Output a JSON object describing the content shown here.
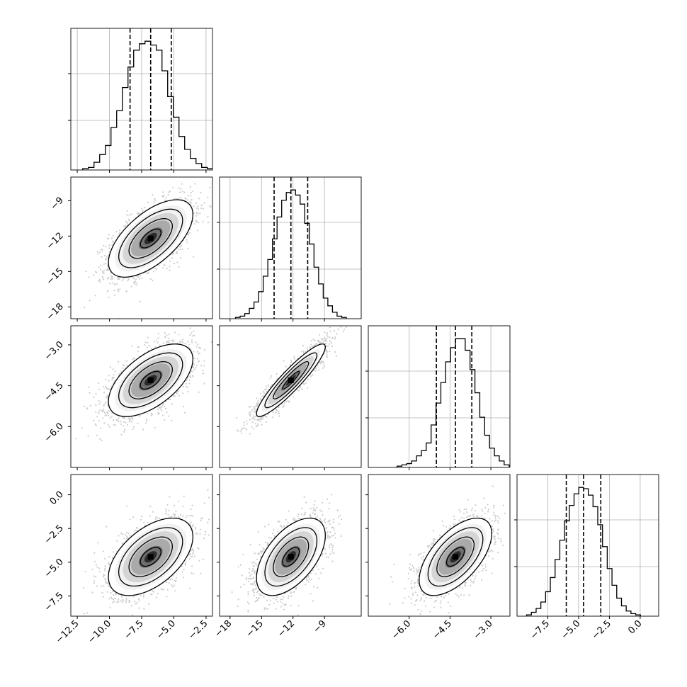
{
  "chart_data": {
    "type": "corner",
    "grid": true,
    "params": [
      {
        "range": [
          -13.0,
          -2.0
        ],
        "ticks": [
          -12.5,
          -10.0,
          -7.5,
          -5.0,
          -2.5
        ],
        "tick_labels": [
          "−12.5",
          "−10.0",
          "−7.5",
          "−5.0",
          "−2.5"
        ],
        "quantiles": [
          -8.4,
          -6.8,
          -5.2
        ],
        "hist": [
          0.01,
          0.02,
          0.06,
          0.12,
          0.19,
          0.33,
          0.46,
          0.64,
          0.8,
          0.93,
          0.98,
          1.0,
          0.97,
          0.93,
          0.77,
          0.57,
          0.41,
          0.26,
          0.16,
          0.09,
          0.05,
          0.02,
          0.01,
          0.005
        ],
        "hist_ylim": [
          0,
          1.1
        ]
      },
      {
        "range": [
          -19.0,
          -5.5
        ],
        "ticks": [
          -18,
          -15,
          -12,
          -9
        ],
        "tick_labels": [
          "−18",
          "−15",
          "−12",
          "−9"
        ],
        "quantiles": [
          -13.8,
          -12.2,
          -10.6
        ],
        "hist": [
          0.01,
          0.02,
          0.04,
          0.08,
          0.13,
          0.21,
          0.33,
          0.46,
          0.62,
          0.79,
          0.92,
          0.98,
          1.0,
          0.96,
          0.89,
          0.74,
          0.58,
          0.4,
          0.27,
          0.16,
          0.1,
          0.05,
          0.02,
          0.01
        ],
        "hist_ylim": [
          0,
          1.1
        ]
      },
      {
        "range": [
          -7.5,
          -2.3
        ],
        "ticks": [
          -6.0,
          -4.5,
          -3.0
        ],
        "tick_labels": [
          "−6.0",
          "−4.5",
          "−3.0"
        ],
        "quantiles": [
          -5.0,
          -4.3,
          -3.7
        ],
        "hist": [
          0.01,
          0.02,
          0.03,
          0.05,
          0.09,
          0.13,
          0.19,
          0.33,
          0.5,
          0.66,
          0.82,
          0.93,
          1.0,
          1.0,
          0.91,
          0.76,
          0.58,
          0.39,
          0.25,
          0.15,
          0.09,
          0.05,
          0.02,
          0.01
        ],
        "hist_ylim": [
          0,
          1.1
        ]
      },
      {
        "range": [
          -10.0,
          1.5
        ],
        "ticks": [
          -7.5,
          -5.0,
          -2.5,
          0.0
        ],
        "tick_labels": [
          "−7.5",
          "−5.0",
          "−2.5",
          "0.0"
        ],
        "quantiles": [
          -6.0,
          -4.6,
          -3.2
        ],
        "hist": [
          0.01,
          0.03,
          0.06,
          0.11,
          0.19,
          0.3,
          0.44,
          0.59,
          0.74,
          0.86,
          0.95,
          1.0,
          0.99,
          0.94,
          0.85,
          0.71,
          0.54,
          0.37,
          0.24,
          0.14,
          0.08,
          0.04,
          0.02,
          0.01
        ],
        "hist_ylim": [
          0,
          1.1
        ]
      }
    ],
    "y_axis_ranges": {
      "1": [
        -19.0,
        -7.0
      ],
      "2": [
        -7.5,
        -2.3
      ],
      "3": [
        -9.0,
        1.5
      ]
    },
    "y_axis_ticks": {
      "1": {
        "ticks": [
          -18,
          -15,
          -12,
          -9
        ],
        "labels": [
          "−18",
          "−15",
          "−12",
          "−9"
        ]
      },
      "2": {
        "ticks": [
          -6.0,
          -4.5,
          -3.0
        ],
        "labels": [
          "−6.0",
          "−4.5",
          "−3.0"
        ]
      },
      "3": {
        "ticks": [
          -7.5,
          -5.0,
          -2.5,
          0.0
        ],
        "labels": [
          "−7.5",
          "−5.0",
          "−2.5",
          "0.0"
        ]
      }
    },
    "means": [
      -6.8,
      -12.2,
      -4.3,
      -4.6
    ],
    "sds": [
      1.6,
      1.6,
      0.65,
      1.4
    ],
    "correlations": {
      "1-0": 0.62,
      "2-0": 0.58,
      "2-1": 0.92,
      "3-0": 0.52,
      "3-1": 0.55,
      "3-2": 0.6
    }
  }
}
